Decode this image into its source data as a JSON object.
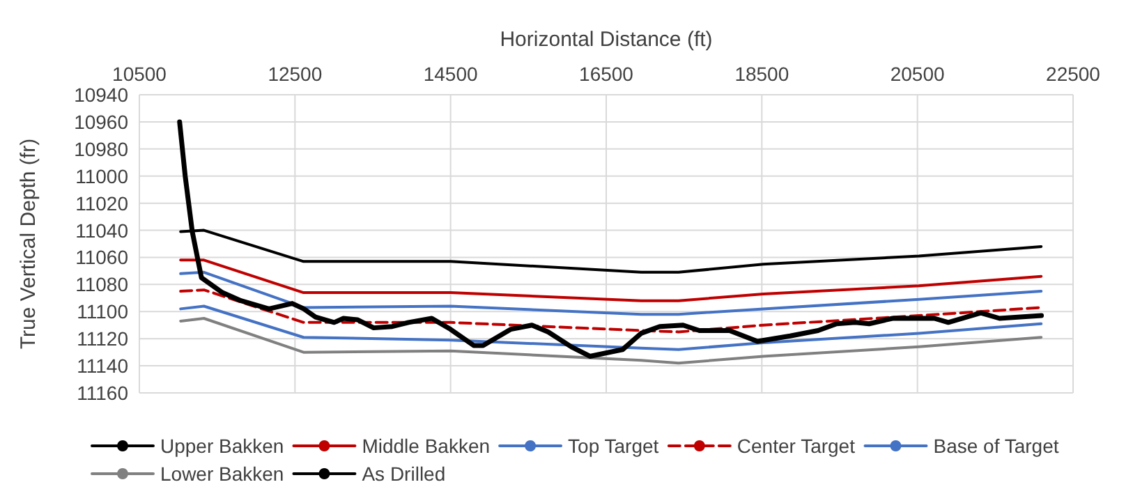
{
  "chart_data": {
    "type": "line",
    "xlabel": "Horizontal Distance (ft)",
    "ylabel": "True Vertical Depth (fr)",
    "xlim": [
      10500,
      22500
    ],
    "xticks": [
      10500,
      12500,
      14500,
      16500,
      18500,
      20500,
      22500
    ],
    "ylim": [
      11160,
      10940
    ],
    "yticks": [
      10940,
      10960,
      10980,
      11000,
      11020,
      11040,
      11060,
      11080,
      11100,
      11120,
      11140,
      11160
    ],
    "grid": true,
    "legend": "bottom",
    "marker": "none",
    "series": [
      {
        "name": "Upper Bakken",
        "color": "#000000",
        "x": [
          11030,
          11330,
          12610,
          14500,
          16950,
          17430,
          18520,
          20520,
          22090
        ],
        "values": [
          11041,
          11040,
          11063,
          11063,
          11071,
          11071,
          11065,
          11059,
          11052
        ]
      },
      {
        "name": "Middle Bakken",
        "color": "#c00000",
        "x": [
          11030,
          11330,
          12610,
          14500,
          16950,
          17430,
          18520,
          20520,
          22090
        ],
        "values": [
          11062,
          11062,
          11086,
          11086,
          11092,
          11092,
          11087,
          11081,
          11074
        ]
      },
      {
        "name": "Top Target",
        "color": "#4472c4",
        "x": [
          11030,
          11330,
          12610,
          14500,
          16950,
          17430,
          18520,
          20520,
          22090
        ],
        "values": [
          11072,
          11071,
          11097,
          11096,
          11102,
          11102,
          11098,
          11091,
          11085
        ]
      },
      {
        "name": "Center Target",
        "color": "#c00000",
        "line_style": "dashed",
        "x": [
          11030,
          11330,
          12610,
          14500,
          16950,
          17430,
          18520,
          20520,
          22090
        ],
        "values": [
          11085,
          11084,
          11108,
          11108,
          11114,
          11115,
          11110,
          11103,
          11097
        ]
      },
      {
        "name": "Base of Target",
        "color": "#4472c4",
        "x": [
          11030,
          11330,
          12610,
          14500,
          16950,
          17430,
          18520,
          20520,
          22090
        ],
        "values": [
          11098,
          11096,
          11119,
          11121,
          11127,
          11128,
          11123,
          11116,
          11109
        ]
      },
      {
        "name": "Lower Bakken",
        "color": "#808080",
        "x": [
          11030,
          11330,
          12610,
          14500,
          16950,
          17430,
          18520,
          20520,
          22090
        ],
        "values": [
          11107,
          11105,
          11130,
          11129,
          11136,
          11138,
          11133,
          11126,
          11119
        ]
      },
      {
        "name": "As Drilled",
        "color": "#000000",
        "x": [
          11017,
          11089,
          11180,
          11298,
          11568,
          11806,
          12165,
          12464,
          12614,
          12764,
          13003,
          13123,
          13302,
          13511,
          13750,
          13959,
          14258,
          14497,
          14797,
          14917,
          15276,
          15545,
          15754,
          16052,
          16291,
          16711,
          16950,
          17188,
          17488,
          17697,
          18085,
          18444,
          18864,
          19222,
          19461,
          19700,
          19879,
          20179,
          20717,
          20896,
          21314,
          21554,
          22093
        ],
        "values": [
          10960,
          11000,
          11041,
          11075,
          11086,
          11092,
          11098,
          11094,
          11098,
          11104,
          11108,
          11105,
          11106,
          11112,
          11111,
          11108,
          11105,
          11113,
          11125,
          11125,
          11113,
          11110,
          11115,
          11126,
          11133,
          11128,
          11116,
          11111,
          11110,
          11114,
          11114,
          11122,
          11118,
          11114,
          11109,
          11108,
          11109,
          11105,
          11105,
          11108,
          11101,
          11105,
          11103
        ]
      }
    ]
  }
}
